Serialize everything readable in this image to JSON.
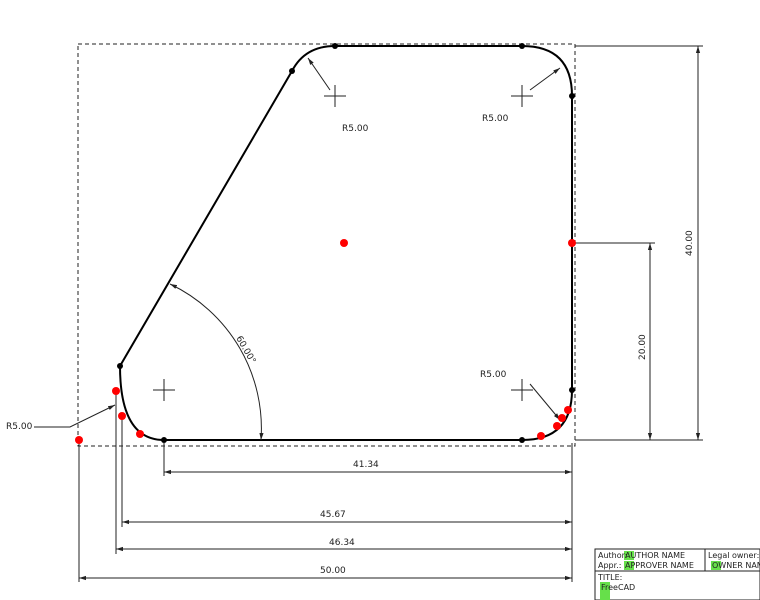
{
  "drawing": {
    "dimensions": {
      "r_top_left": "R5.00",
      "r_top_right": "R5.00",
      "r_bottom_right": "R5.00",
      "r_bottom_left": "R5.00",
      "angle": "60.00°",
      "width_41": "41.34",
      "width_45": "45.67",
      "width_46": "46.34",
      "width_50": "50.00",
      "height_20": "20.00",
      "height_40": "40.00"
    },
    "colors": {
      "outline": "#000000",
      "dimension": "#222222",
      "point_red": "#ff0000",
      "point_black": "#000000",
      "highlight": "#66e04a"
    }
  },
  "title_block": {
    "author_label": "Author:",
    "author_value": "AUTHOR NAME",
    "appr_label": "Appr.:",
    "appr_value": "APPROVER NAME",
    "legal_label": "Legal owner:",
    "legal_value": "OWNER NAME",
    "title_label": "TITLE:",
    "title_value": "FreeCAD"
  }
}
